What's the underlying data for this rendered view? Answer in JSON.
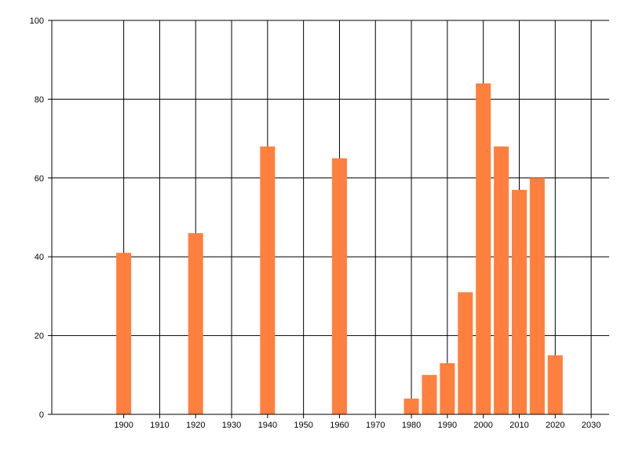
{
  "chart_data": {
    "type": "bar",
    "title": "",
    "xlabel": "",
    "ylabel": "",
    "bar_color": "#ff7f3f",
    "grid_color": "#000000",
    "grid": true,
    "legend": "none",
    "x": [
      1900,
      1920,
      1940,
      1960,
      1980,
      1985,
      1990,
      1995,
      2000,
      2005,
      2010,
      2015,
      2020
    ],
    "values": [
      41,
      46,
      68,
      65,
      4,
      10,
      13,
      31,
      84,
      68,
      57,
      60,
      15
    ],
    "xlim": [
      1890,
      2035
    ],
    "ylim": [
      0,
      100
    ],
    "xticks": [
      1900,
      1910,
      1920,
      1930,
      1940,
      1950,
      1960,
      1970,
      1980,
      1990,
      2000,
      2010,
      2020,
      2030
    ],
    "yticks": [
      0,
      20,
      40,
      60,
      80,
      100
    ]
  }
}
